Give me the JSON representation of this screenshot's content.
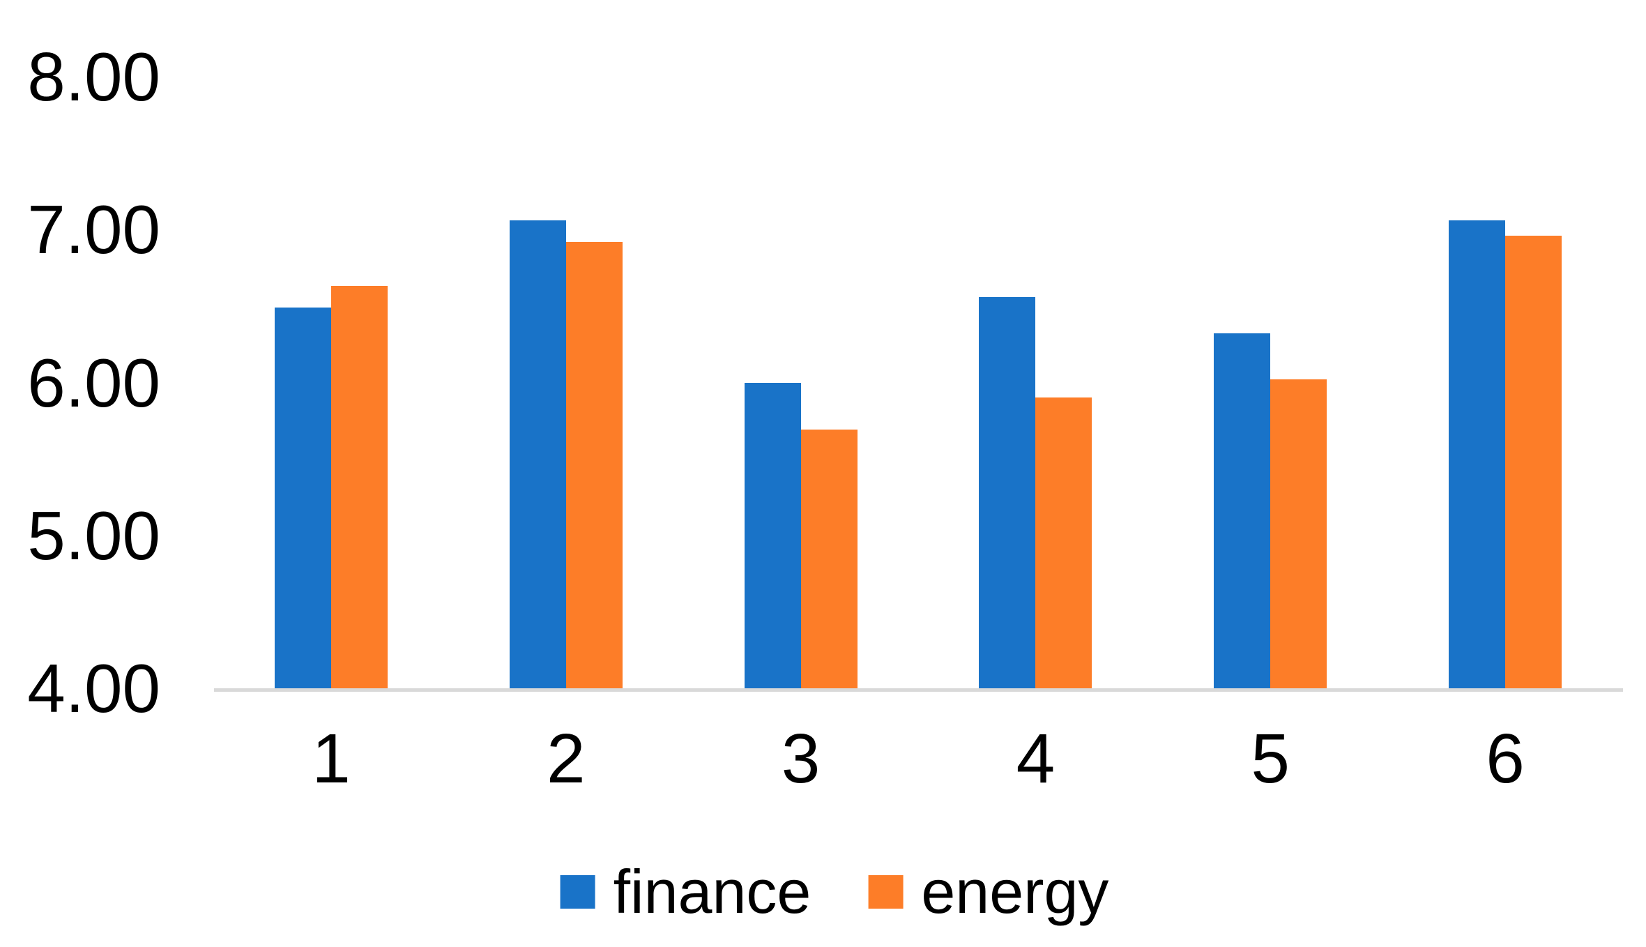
{
  "chart_data": {
    "type": "bar",
    "title": "",
    "categories": [
      "1",
      "2",
      "3",
      "4",
      "5",
      "6"
    ],
    "series": [
      {
        "name": "finance",
        "color": "#1973C8",
        "values": [
          6.49,
          7.06,
          6.0,
          6.56,
          6.32,
          7.06
        ]
      },
      {
        "name": "energy",
        "color": "#FD7D28",
        "values": [
          6.63,
          6.92,
          5.69,
          5.9,
          6.02,
          6.96
        ]
      }
    ],
    "xlabel": "",
    "ylabel": "",
    "ylim": [
      4,
      8
    ],
    "yticks": [
      {
        "value": 8,
        "label": "8.00"
      },
      {
        "value": 7,
        "label": "7.00"
      },
      {
        "value": 6,
        "label": "6.00"
      },
      {
        "value": 5,
        "label": "5.00"
      },
      {
        "value": 4,
        "label": "4.00"
      }
    ],
    "grid": false,
    "legend": {
      "position": "bottom",
      "entries": [
        "finance",
        "energy"
      ]
    },
    "colors": {
      "axis_line": "#D9D9D9",
      "text": "#000000",
      "background": "#FFFFFF"
    }
  }
}
